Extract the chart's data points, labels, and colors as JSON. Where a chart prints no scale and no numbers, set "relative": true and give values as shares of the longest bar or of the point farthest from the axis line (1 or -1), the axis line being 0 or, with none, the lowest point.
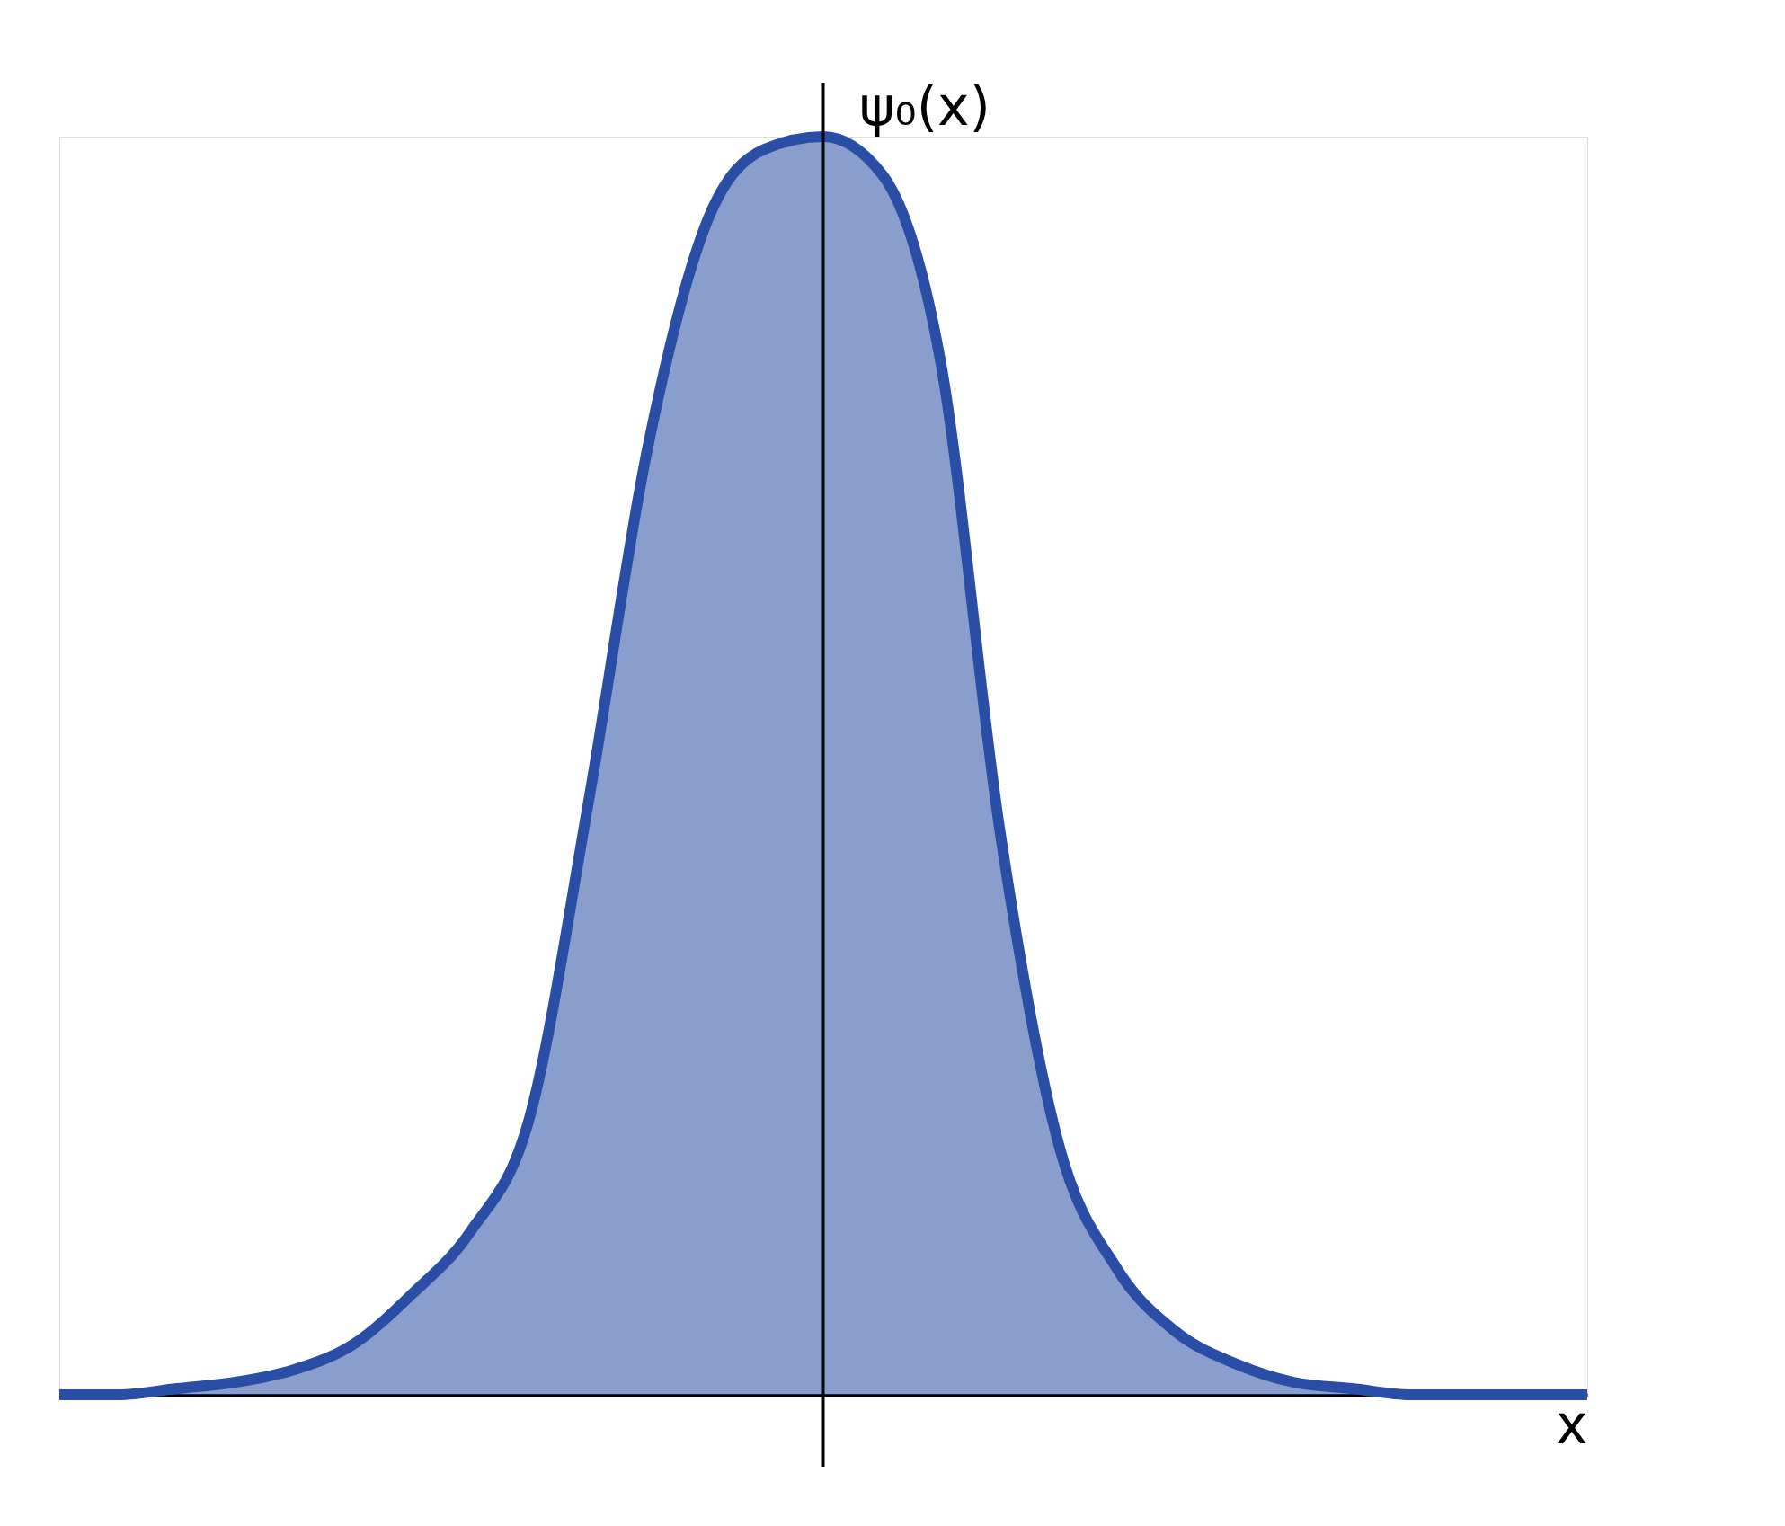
{
  "chart_data": {
    "type": "area",
    "relative": true,
    "xlabel": "x",
    "ylabel": "ψ₀(x)",
    "categories": [
      null,
      null,
      null,
      null,
      null,
      null,
      null,
      null,
      null,
      null,
      null,
      null,
      null,
      null,
      null,
      null,
      null,
      null,
      null,
      null,
      null,
      null,
      null,
      null,
      null,
      null,
      null
    ],
    "series": [
      {
        "color": "#2a4ea6",
        "values": [
          0,
          0,
          0.005,
          0.01,
          0.02,
          0.04,
          0.08,
          0.13,
          0.22,
          0.47,
          0.75,
          0.93,
          0.99,
          1.0,
          0.97,
          0.82,
          0.45,
          0.2,
          0.1,
          0.05,
          0.025,
          0.01,
          0.005,
          0,
          0,
          0,
          0
        ]
      }
    ],
    "grid": false
  }
}
